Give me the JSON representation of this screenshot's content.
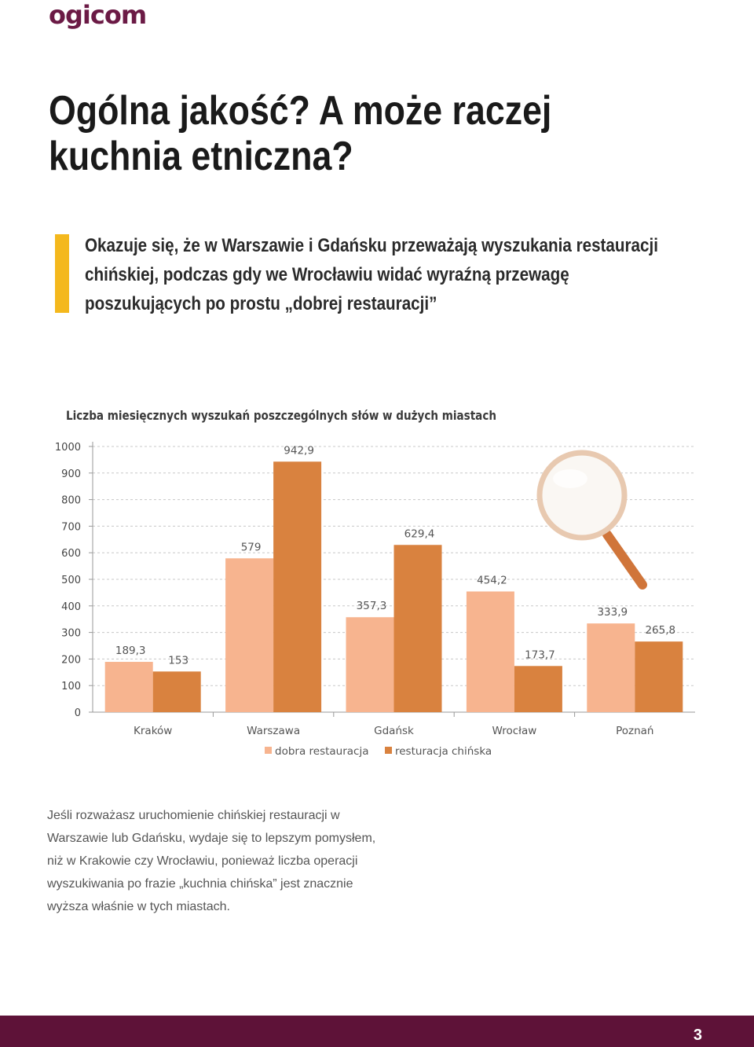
{
  "header": {
    "logo": "ogicom"
  },
  "title": "Ogólna jakość? A może raczej kuchnia etniczna?",
  "lead": "Okazuje się, że w Warszawie i Gdańsku przeważają wyszukania restauracji chińskiej, podczas gdy we Wrocławiu widać wyraźną przewagę poszukujących po prostu „dobrej restauracji”",
  "body": "Jeśli rozważasz uruchomienie chińskiej restauracji w Warszawie lub Gdańsku, wydaje się to lepszym pomysłem, niż w Krakowie czy Wrocławiu, ponieważ liczba operacji wyszukiwania po frazie „kuchnia chińska” jest znacznie wyższa właśnie w tych miastach.",
  "footer": {
    "page_number": "3"
  },
  "colors": {
    "series1": "#f7b48f",
    "series2": "#d9823f",
    "accent": "#f4b81d",
    "footer": "#5e1238"
  },
  "chart_data": {
    "type": "bar",
    "title": "Liczba miesięcznych wyszukań poszczególnych słów w dużych miastach",
    "categories": [
      "Kraków",
      "Warszawa",
      "Gdańsk",
      "Wrocław",
      "Poznań"
    ],
    "series": [
      {
        "name": "dobra restauracja",
        "values": [
          189.3,
          579,
          357.3,
          454.2,
          333.9
        ],
        "labels": [
          "189,3",
          "579",
          "357,3",
          "454,2",
          "333,9"
        ]
      },
      {
        "name": "resturacja chińska",
        "values": [
          153,
          942.9,
          629.4,
          173.7,
          265.8
        ],
        "labels": [
          "153",
          "942,9",
          "629,4",
          "173,7",
          "265,8"
        ]
      }
    ],
    "ylim": [
      0,
      1000
    ],
    "yticks": [
      0,
      100,
      200,
      300,
      400,
      500,
      600,
      700,
      800,
      900,
      1000
    ],
    "grid": true,
    "legend": "bottom",
    "decoration": "magnifier-icon"
  }
}
